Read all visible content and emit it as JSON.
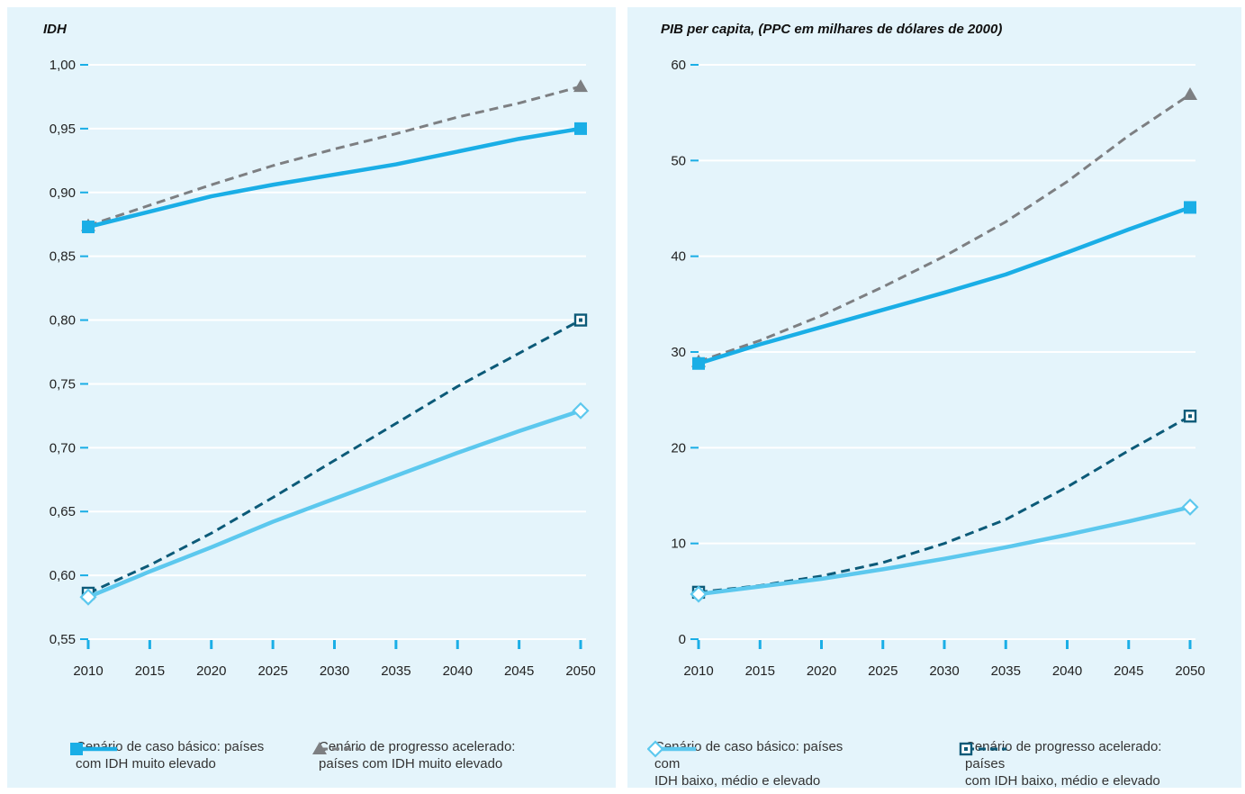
{
  "colors": {
    "panel_bg": "#e4f4fb",
    "very_high_base": "#1aaee6",
    "very_high_accel": "#7d7f82",
    "low_mid_high_base": "#5cc8ee",
    "low_mid_high_accel": "#0c5a78"
  },
  "chart_data": [
    {
      "type": "line",
      "title": "IDH",
      "x": [
        2010,
        2015,
        2020,
        2025,
        2030,
        2035,
        2040,
        2045,
        2050
      ],
      "x_tick_labels": [
        "2010",
        "2015",
        "2020",
        "2025",
        "2030",
        "2035",
        "2040",
        "2045",
        "2050"
      ],
      "ylim": [
        0.55,
        1.0
      ],
      "y_ticks": [
        0.55,
        0.6,
        0.65,
        0.7,
        0.75,
        0.8,
        0.85,
        0.9,
        0.95,
        1.0
      ],
      "y_tick_labels": [
        "0,55",
        "0,60",
        "0,65",
        "0,70",
        "0,75",
        "0,80",
        "0,85",
        "0,90",
        "0,95",
        "1,00"
      ],
      "series": [
        {
          "key": "very_high_accel",
          "style": "dashed",
          "marker": "triangle",
          "values": [
            0.874,
            0.89,
            0.906,
            0.921,
            0.934,
            0.946,
            0.959,
            0.97,
            0.983
          ]
        },
        {
          "key": "very_high_base",
          "style": "solid",
          "marker": "square",
          "values": [
            0.873,
            0.885,
            0.897,
            0.906,
            0.914,
            0.922,
            0.932,
            0.942,
            0.95
          ]
        },
        {
          "key": "low_mid_high_accel",
          "style": "dashed",
          "marker": "square-dot",
          "values": [
            0.586,
            0.608,
            0.633,
            0.661,
            0.69,
            0.719,
            0.748,
            0.774,
            0.8
          ]
        },
        {
          "key": "low_mid_high_base",
          "style": "solid",
          "marker": "diamond",
          "values": [
            0.583,
            0.603,
            0.622,
            0.642,
            0.66,
            0.678,
            0.696,
            0.713,
            0.729
          ]
        }
      ],
      "legend": [
        {
          "key": "very_high_base",
          "marker": "square",
          "style": "solid",
          "label_line1": "Cenário de caso básico: países",
          "label_line2": "com IDH muito elevado"
        },
        {
          "key": "very_high_accel",
          "marker": "triangle",
          "style": "dashed",
          "label_line1": "Cenário de progresso acelerado:",
          "label_line2": "países com IDH muito elevado"
        }
      ]
    },
    {
      "type": "line",
      "title": "PIB per capita, (PPC em milhares de dólares de 2000)",
      "x": [
        2010,
        2015,
        2020,
        2025,
        2030,
        2035,
        2040,
        2045,
        2050
      ],
      "x_tick_labels": [
        "2010",
        "2015",
        "2020",
        "2025",
        "2030",
        "2035",
        "2040",
        "2045",
        "2050"
      ],
      "ylim": [
        0,
        60
      ],
      "y_ticks": [
        0,
        10,
        20,
        30,
        40,
        50,
        60
      ],
      "y_tick_labels": [
        "0",
        "10",
        "20",
        "30",
        "40",
        "50",
        "60"
      ],
      "series": [
        {
          "key": "very_high_accel",
          "style": "dashed",
          "marker": "triangle",
          "values": [
            29.0,
            31.2,
            33.8,
            36.8,
            40.0,
            43.6,
            47.8,
            52.6,
            56.9
          ]
        },
        {
          "key": "very_high_base",
          "style": "solid",
          "marker": "square",
          "values": [
            28.8,
            30.8,
            32.6,
            34.4,
            36.2,
            38.1,
            40.4,
            42.8,
            45.1
          ]
        },
        {
          "key": "low_mid_high_accel",
          "style": "dashed",
          "marker": "square-dot",
          "values": [
            4.9,
            5.6,
            6.6,
            8.0,
            10.0,
            12.5,
            15.9,
            19.7,
            23.3
          ]
        },
        {
          "key": "low_mid_high_base",
          "style": "solid",
          "marker": "diamond",
          "values": [
            4.7,
            5.5,
            6.3,
            7.3,
            8.4,
            9.6,
            10.9,
            12.3,
            13.8
          ]
        }
      ],
      "legend": [
        {
          "key": "low_mid_high_base",
          "marker": "diamond",
          "style": "solid",
          "label_line1": "Cenário de caso básico: países com",
          "label_line2": "IDH baixo, médio e elevado"
        },
        {
          "key": "low_mid_high_accel",
          "marker": "square-dot",
          "style": "dashed",
          "label_line1": "Cenário de progresso acelerado: países",
          "label_line2": "com IDH baixo, médio e elevado"
        }
      ]
    }
  ]
}
